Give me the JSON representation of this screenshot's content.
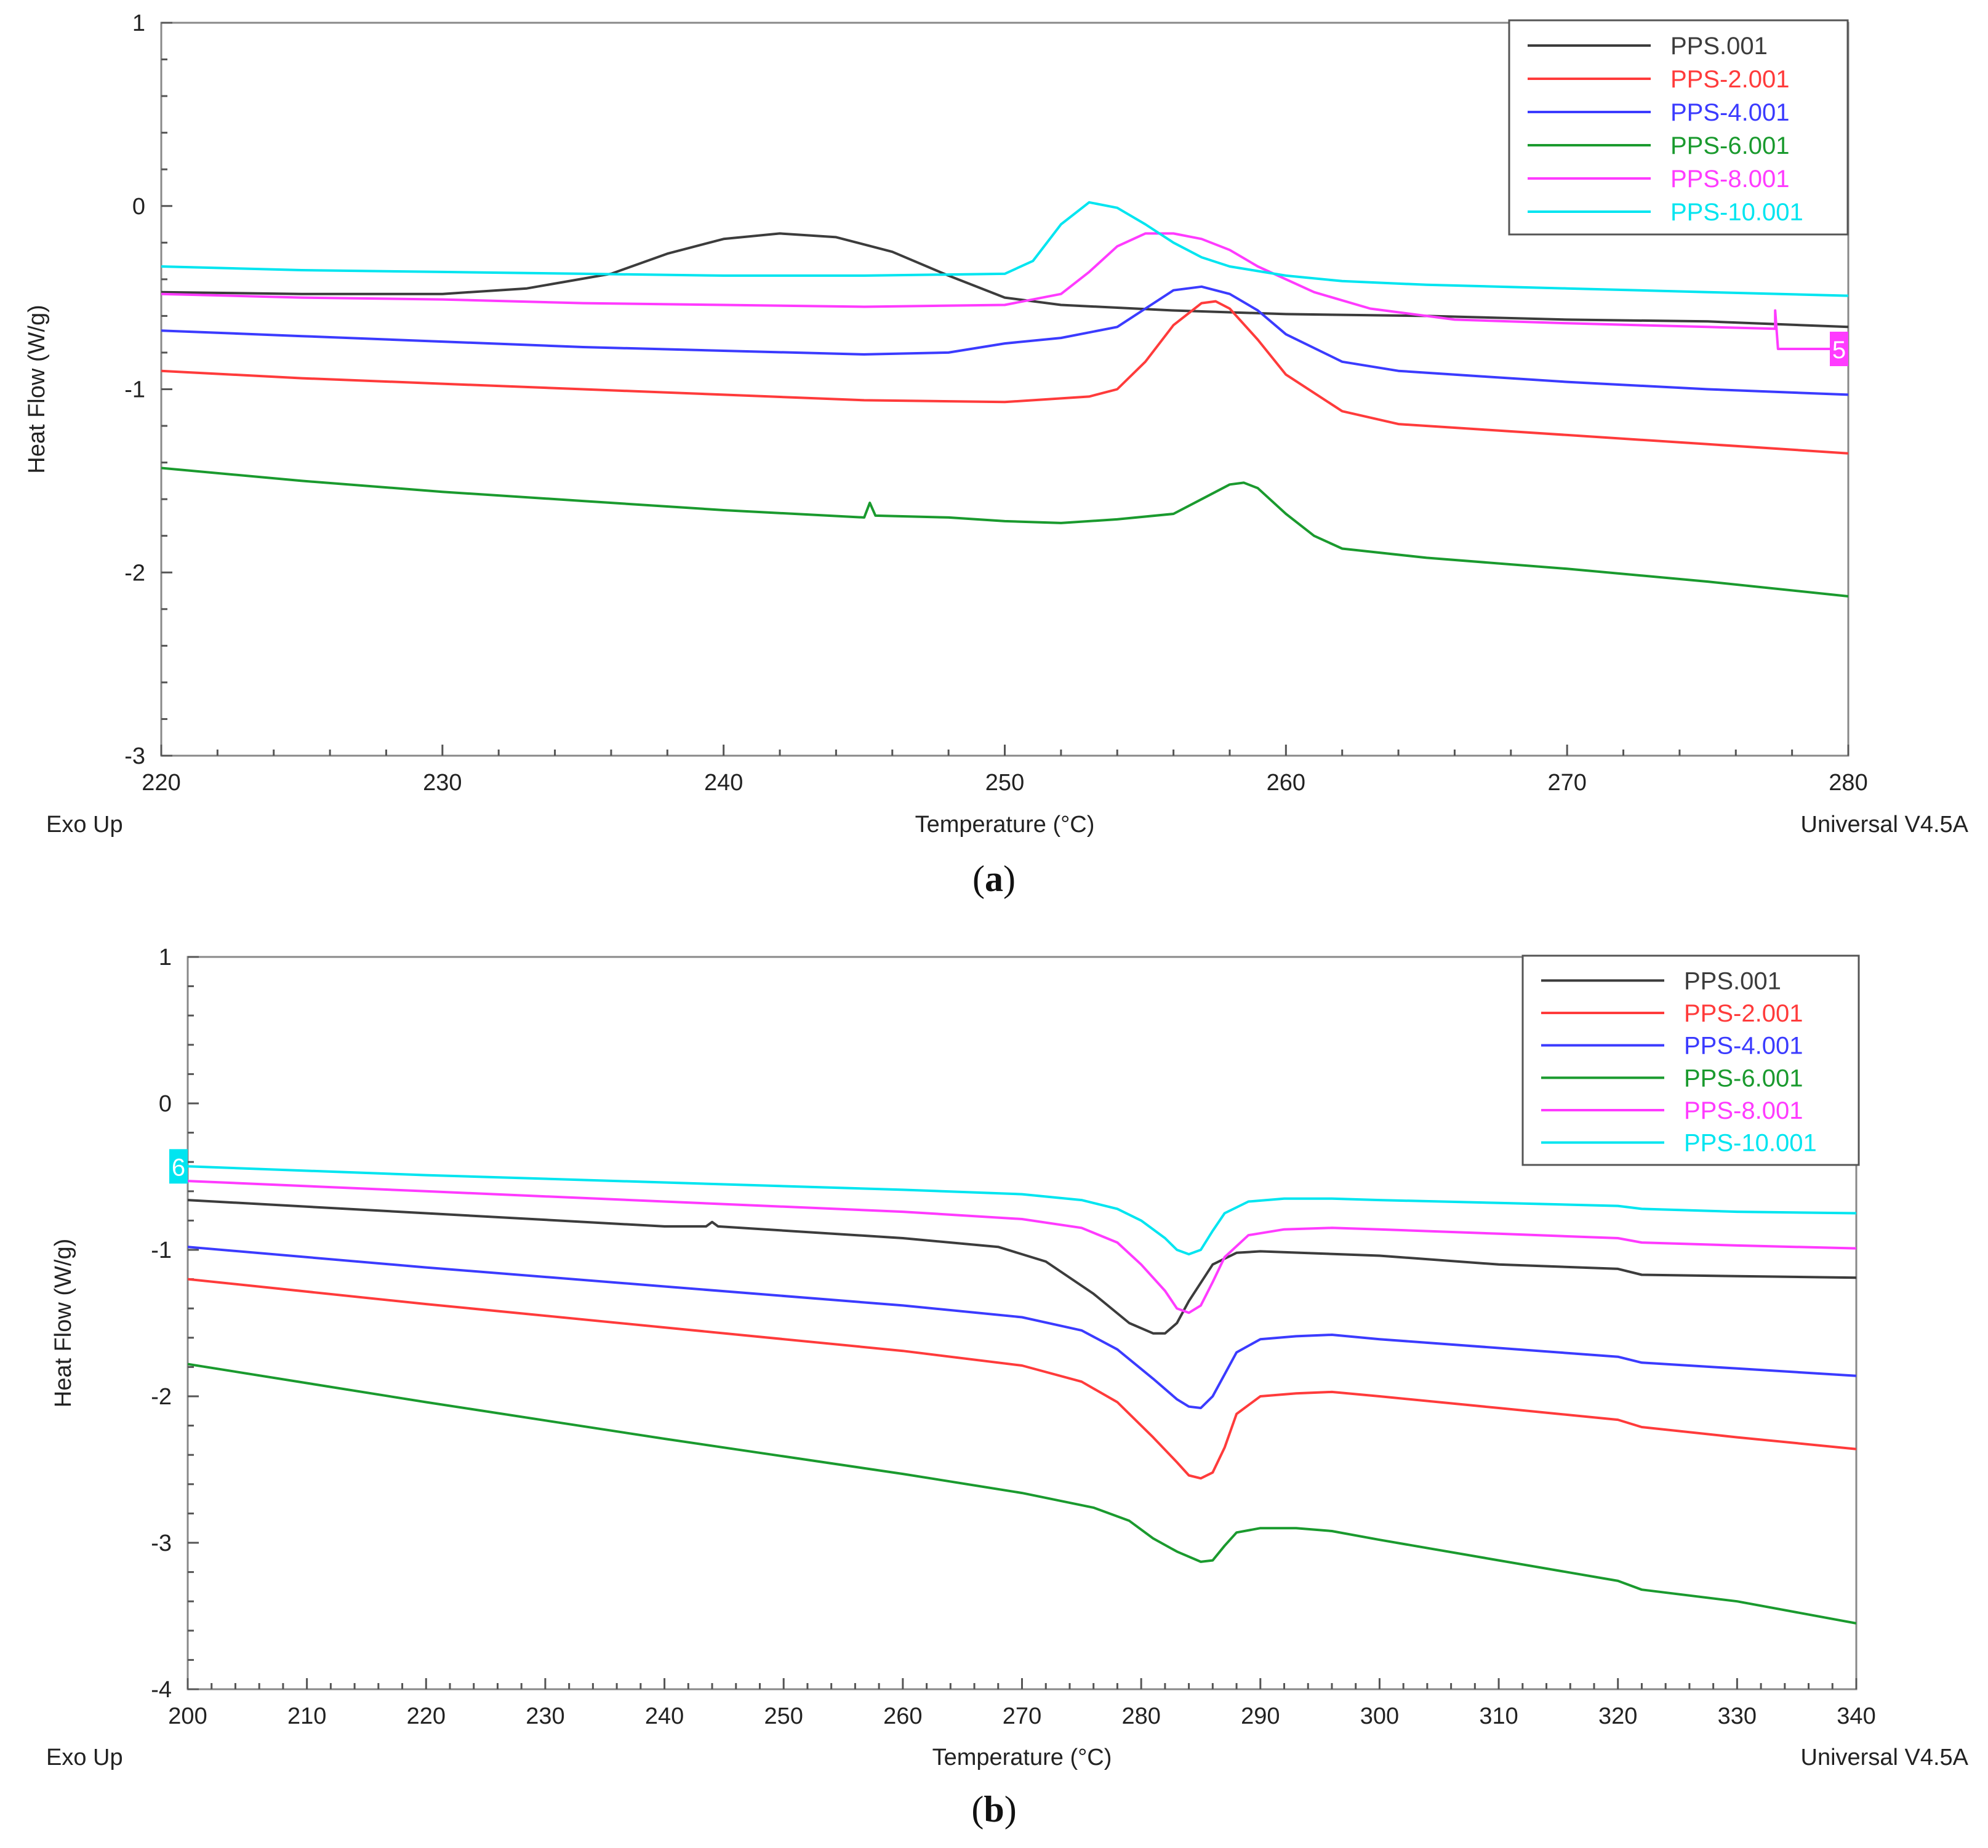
{
  "colors": {
    "PPS.001": "#3c3c3c",
    "PPS-2.001": "#ff3b3b",
    "PPS-4.001": "#3b3bff",
    "PPS-6.001": "#1a9a2e",
    "PPS-8.001": "#ff3bff",
    "PPS-10.001": "#00e5f0"
  },
  "chart_data": [
    {
      "type": "line",
      "panel_label": "a",
      "xlabel": "Temperature (°C)",
      "ylabel": "Heat Flow (W/g)",
      "footer_left": "Exo Up",
      "footer_right": "Universal V4.5A",
      "xlim": [
        220,
        280
      ],
      "ylim": [
        -3,
        1
      ],
      "xticks": [
        220,
        230,
        240,
        250,
        260,
        270,
        280
      ],
      "yticks": [
        -3,
        -2,
        -1,
        0,
        1
      ],
      "legend_position": "top-right",
      "marker": {
        "text": "5",
        "series": "PPS-8.001"
      },
      "series": [
        {
          "name": "PPS.001",
          "x": [
            220,
            225,
            230,
            233,
            236,
            238,
            240,
            242,
            244,
            246,
            248,
            250,
            252,
            256,
            260,
            265,
            270,
            275,
            280
          ],
          "y": [
            -0.47,
            -0.48,
            -0.48,
            -0.45,
            -0.37,
            -0.26,
            -0.18,
            -0.15,
            -0.17,
            -0.25,
            -0.38,
            -0.5,
            -0.54,
            -0.57,
            -0.59,
            -0.6,
            -0.62,
            -0.63,
            -0.66
          ]
        },
        {
          "name": "PPS-2.001",
          "x": [
            220,
            225,
            230,
            235,
            240,
            245,
            250,
            253,
            254,
            255,
            256,
            257,
            257.5,
            258,
            259,
            260,
            262,
            264,
            267,
            270,
            275,
            280
          ],
          "y": [
            -0.9,
            -0.94,
            -0.97,
            -1.0,
            -1.03,
            -1.06,
            -1.07,
            -1.04,
            -1.0,
            -0.85,
            -0.65,
            -0.53,
            -0.52,
            -0.56,
            -0.73,
            -0.92,
            -1.12,
            -1.19,
            -1.22,
            -1.25,
            -1.3,
            -1.35
          ]
        },
        {
          "name": "PPS-4.001",
          "x": [
            220,
            225,
            230,
            235,
            240,
            245,
            248,
            250,
            252,
            254,
            255,
            256,
            257,
            258,
            259,
            260,
            262,
            264,
            267,
            270,
            275,
            280
          ],
          "y": [
            -0.68,
            -0.71,
            -0.74,
            -0.77,
            -0.79,
            -0.81,
            -0.8,
            -0.75,
            -0.72,
            -0.66,
            -0.56,
            -0.46,
            -0.44,
            -0.48,
            -0.57,
            -0.7,
            -0.85,
            -0.9,
            -0.93,
            -0.96,
            -1.0,
            -1.03
          ]
        },
        {
          "name": "PPS-6.001",
          "x": [
            220,
            225,
            230,
            235,
            240,
            245,
            245.2,
            245.4,
            248,
            250,
            252,
            254,
            256,
            257,
            258,
            258.5,
            259,
            260,
            261,
            262,
            265,
            270,
            275,
            280
          ],
          "y": [
            -1.43,
            -1.5,
            -1.56,
            -1.61,
            -1.66,
            -1.7,
            -1.62,
            -1.69,
            -1.7,
            -1.72,
            -1.73,
            -1.71,
            -1.68,
            -1.6,
            -1.52,
            -1.51,
            -1.54,
            -1.68,
            -1.8,
            -1.87,
            -1.92,
            -1.98,
            -2.05,
            -2.13
          ]
        },
        {
          "name": "PPS-8.001",
          "x": [
            220,
            225,
            230,
            235,
            240,
            245,
            250,
            252,
            253,
            254,
            255,
            256,
            257,
            258,
            259,
            261,
            263,
            266,
            270,
            275,
            277.4,
            277.4,
            277.5,
            280
          ],
          "y": [
            -0.48,
            -0.5,
            -0.51,
            -0.53,
            -0.54,
            -0.55,
            -0.54,
            -0.48,
            -0.36,
            -0.22,
            -0.15,
            -0.15,
            -0.18,
            -0.24,
            -0.33,
            -0.47,
            -0.56,
            -0.62,
            -0.64,
            -0.66,
            -0.67,
            -0.57,
            -0.78,
            -0.78
          ]
        },
        {
          "name": "PPS-10.001",
          "x": [
            220,
            225,
            230,
            235,
            240,
            245,
            250,
            251,
            252,
            253,
            254,
            255,
            256,
            257,
            258,
            260,
            262,
            265,
            270,
            275,
            280
          ],
          "y": [
            -0.33,
            -0.35,
            -0.36,
            -0.37,
            -0.38,
            -0.38,
            -0.37,
            -0.3,
            -0.1,
            0.02,
            -0.01,
            -0.1,
            -0.2,
            -0.28,
            -0.33,
            -0.38,
            -0.41,
            -0.43,
            -0.45,
            -0.47,
            -0.49
          ]
        }
      ]
    },
    {
      "type": "line",
      "panel_label": "b",
      "xlabel": "Temperature (°C)",
      "ylabel": "Heat Flow (W/g)",
      "footer_left": "Exo Up",
      "footer_right": "Universal V4.5A",
      "xlim": [
        200,
        340
      ],
      "ylim": [
        -4,
        1
      ],
      "xticks": [
        200,
        210,
        220,
        230,
        240,
        250,
        260,
        270,
        280,
        290,
        300,
        310,
        320,
        330,
        340
      ],
      "yticks": [
        -4,
        -3,
        -2,
        -1,
        0,
        1
      ],
      "legend_position": "top-right",
      "marker": {
        "text": "6",
        "series": "PPS-10.001"
      },
      "series": [
        {
          "name": "PPS.001",
          "x": [
            200,
            220,
            240,
            243.5,
            244,
            244.5,
            260,
            268,
            272,
            276,
            279,
            281,
            282,
            283,
            284,
            286,
            288,
            290,
            300,
            310,
            320,
            322,
            330,
            340
          ],
          "y": [
            -0.66,
            -0.75,
            -0.84,
            -0.84,
            -0.81,
            -0.84,
            -0.92,
            -0.98,
            -1.08,
            -1.3,
            -1.5,
            -1.57,
            -1.57,
            -1.5,
            -1.35,
            -1.1,
            -1.02,
            -1.01,
            -1.04,
            -1.1,
            -1.13,
            -1.17,
            -1.18,
            -1.19
          ]
        },
        {
          "name": "PPS-2.001",
          "x": [
            200,
            220,
            240,
            260,
            270,
            275,
            278,
            281,
            283,
            284,
            285,
            286,
            287,
            288,
            290,
            293,
            296,
            300,
            310,
            320,
            322,
            330,
            340
          ],
          "y": [
            -1.2,
            -1.37,
            -1.53,
            -1.69,
            -1.79,
            -1.9,
            -2.04,
            -2.28,
            -2.45,
            -2.54,
            -2.56,
            -2.52,
            -2.35,
            -2.12,
            -2.0,
            -1.98,
            -1.97,
            -2.0,
            -2.08,
            -2.16,
            -2.21,
            -2.28,
            -2.36
          ]
        },
        {
          "name": "PPS-4.001",
          "x": [
            200,
            220,
            240,
            260,
            270,
            275,
            278,
            281,
            283,
            284,
            285,
            286,
            287,
            288,
            290,
            293,
            296,
            300,
            310,
            320,
            322,
            330,
            340
          ],
          "y": [
            -0.98,
            -1.12,
            -1.25,
            -1.38,
            -1.46,
            -1.55,
            -1.68,
            -1.88,
            -2.02,
            -2.07,
            -2.08,
            -2.0,
            -1.85,
            -1.7,
            -1.61,
            -1.59,
            -1.58,
            -1.61,
            -1.67,
            -1.73,
            -1.77,
            -1.81,
            -1.86
          ]
        },
        {
          "name": "PPS-6.001",
          "x": [
            200,
            220,
            240,
            260,
            270,
            276,
            279,
            281,
            283,
            285,
            286,
            287,
            288,
            290,
            293,
            296,
            300,
            310,
            320,
            322,
            330,
            340
          ],
          "y": [
            -1.78,
            -2.04,
            -2.29,
            -2.53,
            -2.66,
            -2.76,
            -2.85,
            -2.97,
            -3.06,
            -3.13,
            -3.12,
            -3.02,
            -2.93,
            -2.9,
            -2.9,
            -2.92,
            -2.98,
            -3.12,
            -3.26,
            -3.32,
            -3.4,
            -3.55
          ]
        },
        {
          "name": "PPS-8.001",
          "x": [
            200,
            220,
            240,
            260,
            270,
            275,
            278,
            280,
            282,
            283,
            284,
            285,
            286,
            287,
            289,
            292,
            296,
            300,
            310,
            320,
            322,
            330,
            340
          ],
          "y": [
            -0.53,
            -0.6,
            -0.67,
            -0.74,
            -0.79,
            -0.85,
            -0.95,
            -1.1,
            -1.28,
            -1.4,
            -1.43,
            -1.38,
            -1.22,
            -1.05,
            -0.9,
            -0.86,
            -0.85,
            -0.86,
            -0.89,
            -0.92,
            -0.95,
            -0.97,
            -0.99
          ]
        },
        {
          "name": "PPS-10.001",
          "x": [
            200,
            220,
            240,
            260,
            270,
            275,
            278,
            280,
            282,
            283,
            284,
            285,
            286,
            287,
            289,
            292,
            296,
            300,
            310,
            320,
            322,
            330,
            340
          ],
          "y": [
            -0.43,
            -0.49,
            -0.54,
            -0.59,
            -0.62,
            -0.66,
            -0.72,
            -0.8,
            -0.92,
            -1.0,
            -1.03,
            -1.0,
            -0.87,
            -0.75,
            -0.67,
            -0.65,
            -0.65,
            -0.66,
            -0.68,
            -0.7,
            -0.72,
            -0.74,
            -0.75
          ]
        }
      ]
    }
  ]
}
